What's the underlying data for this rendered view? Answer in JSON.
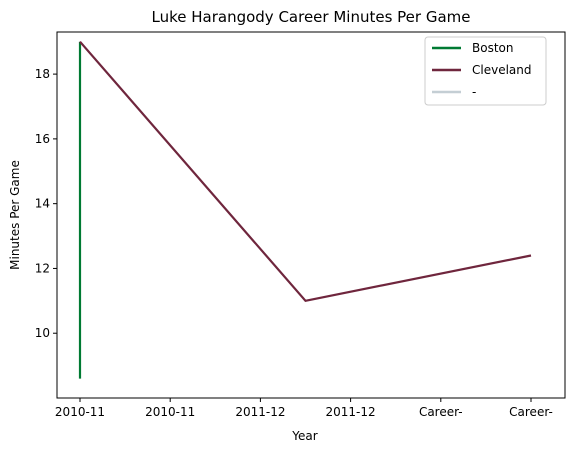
{
  "chart_data": {
    "type": "line",
    "title": "Luke Harangody Career Minutes Per Game",
    "xlabel": "Year",
    "ylabel": "Minutes Per Game",
    "x_categories": [
      "2010-11",
      "2010-11",
      "2011-12",
      "2011-12",
      "Career-",
      "Career-"
    ],
    "ylim": [
      8.0,
      19.3
    ],
    "yticks": [
      10,
      12,
      14,
      16,
      18
    ],
    "grid": false,
    "legend_position": "top-right",
    "series": [
      {
        "name": "Boston",
        "color": "#007A33",
        "points": [
          {
            "x": 0,
            "y": 8.6
          },
          {
            "x": 0,
            "y": 19.0
          }
        ]
      },
      {
        "name": "Cleveland",
        "color": "#6F263D",
        "points": [
          {
            "x": 0,
            "y": 19.0
          },
          {
            "x": 2.5,
            "y": 11.0
          },
          {
            "x": 5,
            "y": 12.4
          }
        ]
      },
      {
        "name": "-",
        "color": "#C4CED4",
        "points": []
      }
    ]
  }
}
